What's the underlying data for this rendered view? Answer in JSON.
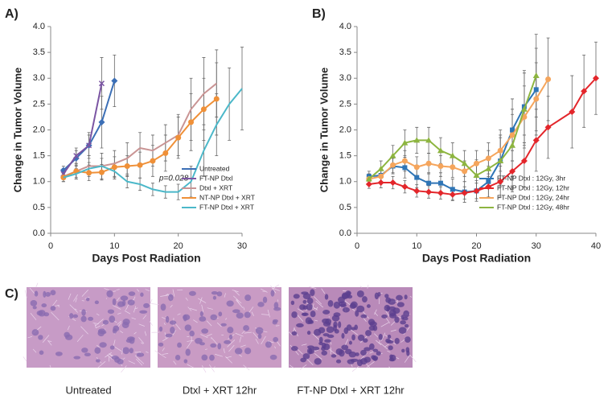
{
  "chart_data": [
    {
      "type": "line",
      "panel_label": "A)",
      "xlabel": "Days Post Radiation",
      "ylabel": "Change in Tumor Volume",
      "xlim": [
        0,
        30
      ],
      "xticks": [
        0,
        10,
        20,
        30
      ],
      "ylim": [
        0,
        4
      ],
      "yticks": [
        {
          "value": 0,
          "label": "0.0"
        },
        {
          "value": 0.5,
          "label": "0.5"
        },
        {
          "value": 1,
          "label": "1.0"
        },
        {
          "value": 1.5,
          "label": "1.5"
        },
        {
          "value": 2,
          "label": "2.0"
        },
        {
          "value": 2.5,
          "label": "2.5"
        },
        {
          "value": 3,
          "label": "3.0"
        },
        {
          "value": 3.5,
          "label": "3.5"
        },
        {
          "value": 4,
          "label": "4.0"
        }
      ],
      "legend": "lower right",
      "annotation": {
        "text": "p=0.028",
        "x": 17,
        "y": 1.06
      },
      "series": [
        {
          "name": "Untreated",
          "color": "#3c6fb6",
          "marker": "diamond",
          "x": [
            2,
            4,
            6,
            8,
            10
          ],
          "values": [
            1.22,
            1.45,
            1.7,
            2.15,
            2.95
          ],
          "errors": [
            0.08,
            0.15,
            0.25,
            0.5,
            0.5
          ]
        },
        {
          "name": "FT-NP Dtxl",
          "color": "#7b55a3",
          "marker": "x",
          "x": [
            2,
            4,
            6,
            8
          ],
          "values": [
            1.15,
            1.5,
            1.7,
            2.9
          ],
          "errors": [
            0.1,
            0.15,
            0.2,
            0.5
          ]
        },
        {
          "name": "Dtxl + XRT",
          "color": "#c99494",
          "marker": "none",
          "x": [
            2,
            4,
            6,
            8,
            10,
            12,
            14,
            16,
            18,
            20,
            22,
            24,
            26
          ],
          "values": [
            1.1,
            1.2,
            1.3,
            1.3,
            1.35,
            1.45,
            1.65,
            1.6,
            1.75,
            1.9,
            2.4,
            2.7,
            2.9
          ],
          "errors": [
            0.1,
            0.15,
            0.2,
            0.25,
            0.25,
            0.3,
            0.3,
            0.3,
            0.35,
            0.4,
            0.6,
            0.7,
            0.65
          ]
        },
        {
          "name": "NT-NP Dtxl + XRT",
          "color": "#ef9038",
          "marker": "circle",
          "x": [
            2,
            4,
            6,
            8,
            10,
            12,
            14,
            16,
            18,
            20,
            22,
            24,
            26
          ],
          "values": [
            1.08,
            1.2,
            1.17,
            1.18,
            1.28,
            1.3,
            1.32,
            1.4,
            1.55,
            1.85,
            2.15,
            2.4,
            2.6
          ],
          "errors": [
            0.08,
            0.12,
            0.15,
            0.15,
            0.2,
            0.2,
            0.25,
            0.3,
            0.35,
            0.4,
            0.55,
            0.6,
            0.7
          ]
        },
        {
          "name": "FT-NP Dtxl + XRT",
          "color": "#4bb8c9",
          "marker": "none",
          "x": [
            2,
            4,
            6,
            8,
            10,
            12,
            14,
            16,
            18,
            20,
            22,
            24,
            26,
            28,
            30
          ],
          "values": [
            1.08,
            1.15,
            1.25,
            1.3,
            1.2,
            1.0,
            0.95,
            0.85,
            0.8,
            0.8,
            1.0,
            1.6,
            2.1,
            2.5,
            2.8
          ],
          "errors": [
            0.08,
            0.1,
            0.12,
            0.15,
            0.15,
            0.12,
            0.12,
            0.12,
            0.12,
            0.15,
            0.3,
            0.5,
            0.6,
            0.7,
            0.8
          ]
        }
      ]
    },
    {
      "type": "line",
      "panel_label": "B)",
      "xlabel": "Days Post Radiation",
      "ylabel": "Change in Tumor Volume",
      "xlim": [
        0,
        40
      ],
      "xticks": [
        0,
        10,
        20,
        30,
        40
      ],
      "ylim": [
        0,
        4
      ],
      "yticks": [
        {
          "value": 0,
          "label": "0.0"
        },
        {
          "value": 0.5,
          "label": "0.5"
        },
        {
          "value": 1,
          "label": "1.0"
        },
        {
          "value": 1.5,
          "label": "1.5"
        },
        {
          "value": 2,
          "label": "2.0"
        },
        {
          "value": 2.5,
          "label": "2.5"
        },
        {
          "value": 3,
          "label": "3.0"
        },
        {
          "value": 3.5,
          "label": "3.5"
        },
        {
          "value": 4,
          "label": "4.0"
        }
      ],
      "legend": "lower right",
      "series": [
        {
          "name": "FT-NP Dtxl : 12Gy, 3hr",
          "color": "#2e75b6",
          "marker": "square",
          "x": [
            2,
            4,
            6,
            8,
            10,
            12,
            14,
            16,
            18,
            20,
            22,
            24,
            26,
            28,
            30
          ],
          "values": [
            1.1,
            1.12,
            1.3,
            1.27,
            1.08,
            0.97,
            0.97,
            0.85,
            0.8,
            0.82,
            1.0,
            1.4,
            2.0,
            2.45,
            2.78
          ],
          "errors": [
            0.1,
            0.12,
            0.15,
            0.2,
            0.2,
            0.2,
            0.2,
            0.2,
            0.2,
            0.2,
            0.3,
            0.5,
            0.6,
            0.7,
            0.8
          ]
        },
        {
          "name": "FT-NP Dtxl : 12Gy, 12hr",
          "color": "#e3262b",
          "marker": "diamond",
          "x": [
            2,
            4,
            6,
            8,
            10,
            12,
            14,
            16,
            18,
            20,
            22,
            24,
            26,
            28,
            30,
            32,
            36,
            38,
            40
          ],
          "values": [
            0.95,
            0.98,
            0.98,
            0.9,
            0.82,
            0.8,
            0.78,
            0.75,
            0.78,
            0.82,
            0.9,
            1.0,
            1.2,
            1.4,
            1.8,
            2.05,
            2.35,
            2.75,
            3.0
          ],
          "errors": [
            0.08,
            0.1,
            0.12,
            0.12,
            0.12,
            0.12,
            0.12,
            0.12,
            0.12,
            0.15,
            0.2,
            0.3,
            0.4,
            0.5,
            0.6,
            0.6,
            0.7,
            0.7,
            0.7
          ]
        },
        {
          "name": "FT-NP Dtxl : 12Gy, 24hr",
          "color": "#f5a55c",
          "marker": "circle",
          "x": [
            2,
            4,
            6,
            8,
            10,
            12,
            14,
            16,
            18,
            20,
            22,
            24,
            26,
            28,
            30,
            32
          ],
          "values": [
            1.05,
            1.1,
            1.32,
            1.4,
            1.28,
            1.35,
            1.3,
            1.28,
            1.2,
            1.35,
            1.45,
            1.6,
            1.9,
            2.25,
            2.6,
            2.98
          ],
          "errors": [
            0.1,
            0.12,
            0.15,
            0.2,
            0.2,
            0.2,
            0.2,
            0.2,
            0.2,
            0.25,
            0.3,
            0.4,
            0.5,
            0.6,
            0.7,
            0.8
          ]
        },
        {
          "name": "FT-NP Dtxl : 12Gy, 48hr",
          "color": "#8db540",
          "marker": "triangle",
          "x": [
            2,
            4,
            6,
            8,
            10,
            12,
            14,
            16,
            18,
            20,
            22,
            24,
            26,
            28,
            30
          ],
          "values": [
            1.05,
            1.25,
            1.5,
            1.75,
            1.8,
            1.8,
            1.6,
            1.5,
            1.35,
            1.12,
            1.25,
            1.4,
            1.7,
            2.4,
            3.05
          ],
          "errors": [
            0.1,
            0.15,
            0.2,
            0.25,
            0.25,
            0.25,
            0.25,
            0.25,
            0.25,
            0.3,
            0.35,
            0.45,
            0.6,
            0.7,
            0.8
          ]
        }
      ]
    }
  ],
  "panel_c": {
    "label": "C)",
    "captions": [
      "Untreated",
      "Dtxl + XRT 12hr",
      "FT-NP Dtxl + XRT 12hr"
    ]
  }
}
